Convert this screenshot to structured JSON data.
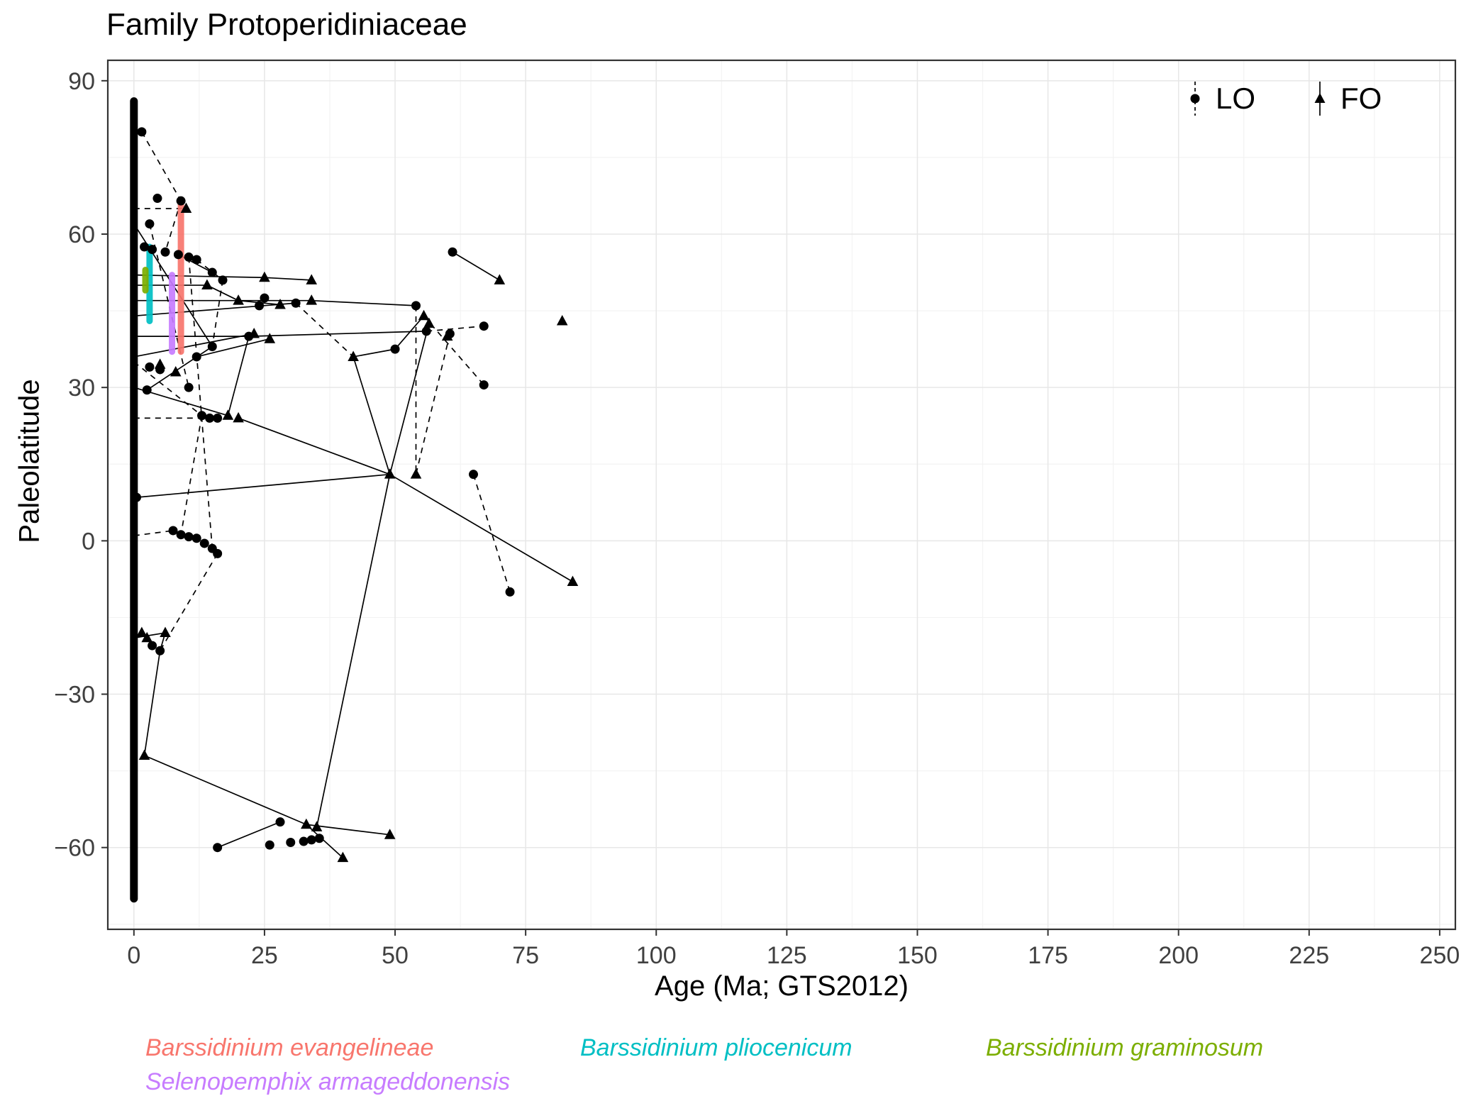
{
  "title": "Family Protoperidiniaceae",
  "axes": {
    "x_label": "Age (Ma; GTS2012)",
    "y_label": "Paleolatitude"
  },
  "captions": [
    {
      "label": "Barssidinium evangelineae",
      "color": "#F8766D"
    },
    {
      "label": "Barssidinium pliocenicum",
      "color": "#00BFC4"
    },
    {
      "label": "Barssidinium graminosum",
      "color": "#7CAE00"
    },
    {
      "label": "Selenopemphix armageddonensis",
      "color": "#C77CFF"
    }
  ],
  "chart_data": {
    "type": "scatter",
    "title": "Family Protoperidiniaceae",
    "xlabel": "Age (Ma; GTS2012)",
    "ylabel": "Paleolatitude",
    "xlim": [
      -5,
      253
    ],
    "ylim": [
      -76,
      94
    ],
    "x_ticks": [
      0,
      25,
      50,
      75,
      100,
      125,
      150,
      175,
      200,
      225,
      250
    ],
    "y_ticks": [
      -60,
      -30,
      0,
      30,
      60,
      90
    ],
    "grid": "on",
    "legend_position": "top-right-inside",
    "legend": [
      {
        "label": "LO",
        "marker": "circle",
        "line": "dashed"
      },
      {
        "label": "FO",
        "marker": "triangle",
        "line": "solid"
      }
    ],
    "occurrence_strip": {
      "x": 0,
      "y_min": -70,
      "y_max": 86
    },
    "lo_points": [
      [
        1.5,
        80
      ],
      [
        4.5,
        67
      ],
      [
        9,
        66.5
      ],
      [
        3,
        62
      ],
      [
        2,
        57.5
      ],
      [
        3.5,
        57
      ],
      [
        6,
        56.5
      ],
      [
        8.5,
        56
      ],
      [
        10.5,
        55.5
      ],
      [
        12,
        55
      ],
      [
        15,
        52.5
      ],
      [
        17,
        51
      ],
      [
        61,
        56.5
      ],
      [
        25,
        47.5
      ],
      [
        31,
        46.5
      ],
      [
        24,
        46
      ],
      [
        54,
        46
      ],
      [
        56,
        41
      ],
      [
        60.5,
        40.5
      ],
      [
        67,
        42
      ],
      [
        67,
        30.5
      ],
      [
        50,
        37.5
      ],
      [
        22,
        40
      ],
      [
        15,
        38
      ],
      [
        12,
        36
      ],
      [
        10.5,
        30
      ],
      [
        2.5,
        29.5
      ],
      [
        3,
        34
      ],
      [
        5,
        33.5
      ],
      [
        13,
        24.5
      ],
      [
        14.5,
        24
      ],
      [
        16,
        24
      ],
      [
        65,
        13
      ],
      [
        0.5,
        8.5
      ],
      [
        7.5,
        2
      ],
      [
        9,
        1.2
      ],
      [
        10.5,
        0.8
      ],
      [
        12,
        0.5
      ],
      [
        13.5,
        -0.5
      ],
      [
        15,
        -1.5
      ],
      [
        16,
        -2.5
      ],
      [
        72,
        -10
      ],
      [
        5,
        -21.5
      ],
      [
        3.5,
        -20.5
      ],
      [
        16,
        -60
      ],
      [
        26,
        -59.5
      ],
      [
        30,
        -59
      ],
      [
        32.5,
        -58.8
      ],
      [
        34,
        -58.5
      ],
      [
        35.5,
        -58.2
      ],
      [
        28,
        -55
      ]
    ],
    "fo_points": [
      [
        10,
        65
      ],
      [
        25,
        51.5
      ],
      [
        34,
        51
      ],
      [
        14,
        50
      ],
      [
        20,
        47
      ],
      [
        28,
        46.2
      ],
      [
        34,
        47
      ],
      [
        55.5,
        44
      ],
      [
        56.5,
        42.5
      ],
      [
        60,
        40
      ],
      [
        70,
        51
      ],
      [
        82,
        43
      ],
      [
        42,
        36
      ],
      [
        23,
        40.5
      ],
      [
        26,
        39.5
      ],
      [
        18,
        24.5
      ],
      [
        20,
        24
      ],
      [
        5,
        34.5
      ],
      [
        8,
        33
      ],
      [
        49,
        13
      ],
      [
        54,
        13
      ],
      [
        84,
        -8
      ],
      [
        1.5,
        -18
      ],
      [
        2.5,
        -19
      ],
      [
        6,
        -18
      ],
      [
        2,
        -42
      ],
      [
        33,
        -55.5
      ],
      [
        35,
        -56
      ],
      [
        40,
        -62
      ],
      [
        49,
        -57.5
      ]
    ],
    "solid_segments": [
      [
        0,
        52,
        25,
        51.5
      ],
      [
        25,
        51.5,
        34,
        51
      ],
      [
        0,
        50,
        14,
        50
      ],
      [
        14,
        50,
        20,
        47
      ],
      [
        20,
        47,
        28,
        46.2
      ],
      [
        0,
        47,
        34,
        47
      ],
      [
        34,
        47,
        54,
        46
      ],
      [
        42,
        36,
        50,
        37.5
      ],
      [
        50,
        37.5,
        55.5,
        44
      ],
      [
        0,
        40,
        22,
        40
      ],
      [
        22,
        40,
        56,
        41
      ],
      [
        61,
        56.5,
        70,
        51
      ],
      [
        49,
        13,
        0.5,
        8.5
      ],
      [
        49,
        13,
        35,
        -56
      ],
      [
        49,
        13,
        84,
        -8
      ],
      [
        49,
        13,
        42,
        36
      ],
      [
        49,
        13,
        20,
        24
      ],
      [
        49,
        13,
        56.5,
        42.5
      ],
      [
        5,
        -21.5,
        2,
        -42
      ],
      [
        2,
        -42,
        33,
        -55.5
      ],
      [
        33,
        -55.5,
        40,
        -62
      ],
      [
        33,
        -55.5,
        49,
        -57.5
      ],
      [
        28,
        -55,
        16,
        -60
      ],
      [
        0,
        -19,
        6,
        -18
      ],
      [
        6,
        -18,
        5,
        -21.5
      ],
      [
        0,
        62,
        15,
        38
      ],
      [
        18,
        24.5,
        22,
        40
      ],
      [
        0,
        30,
        18,
        24.5
      ],
      [
        8.5,
        56,
        15,
        52.5
      ],
      [
        0,
        44,
        31,
        46.5
      ],
      [
        0,
        36,
        23,
        40.5
      ],
      [
        2.5,
        29.5,
        15,
        38
      ],
      [
        12,
        36,
        26,
        39.5
      ]
    ],
    "dashed_segments": [
      [
        1.5,
        80,
        9,
        66.5
      ],
      [
        9,
        66.5,
        6,
        56.5
      ],
      [
        3,
        62,
        10.5,
        30
      ],
      [
        10.5,
        55.5,
        15,
        -1.5
      ],
      [
        65,
        13,
        72,
        -10
      ],
      [
        54,
        46,
        54,
        13
      ],
      [
        0,
        35,
        13,
        24.5
      ],
      [
        13,
        24.5,
        9,
        1.2
      ],
      [
        0,
        24,
        16,
        24
      ],
      [
        0,
        65,
        10,
        65
      ],
      [
        17,
        51,
        15,
        38
      ],
      [
        55.5,
        44,
        67,
        30.5
      ],
      [
        56,
        41,
        67,
        42
      ],
      [
        16,
        -2.5,
        5,
        -21.5
      ],
      [
        60.5,
        40.5,
        54,
        13
      ],
      [
        0,
        1,
        7.5,
        2
      ],
      [
        12,
        55,
        17,
        51
      ],
      [
        31,
        46.5,
        42,
        36
      ]
    ],
    "highlight_ranges": [
      {
        "species": "Barssidinium evangelineae",
        "color": "#F8766D",
        "x": 9,
        "y_min": 37,
        "y_max": 66
      },
      {
        "species": "Selenopemphix armageddonensis",
        "color": "#C77CFF",
        "x": 7.3,
        "y_min": 37,
        "y_max": 52
      },
      {
        "species": "Barssidinium pliocenicum",
        "color": "#00BFC4",
        "x": 3,
        "y_min": 43,
        "y_max": 57.5
      },
      {
        "species": "Barssidinium graminosum",
        "color": "#7CAE00",
        "x": 2.2,
        "y_min": 49,
        "y_max": 53
      }
    ]
  }
}
